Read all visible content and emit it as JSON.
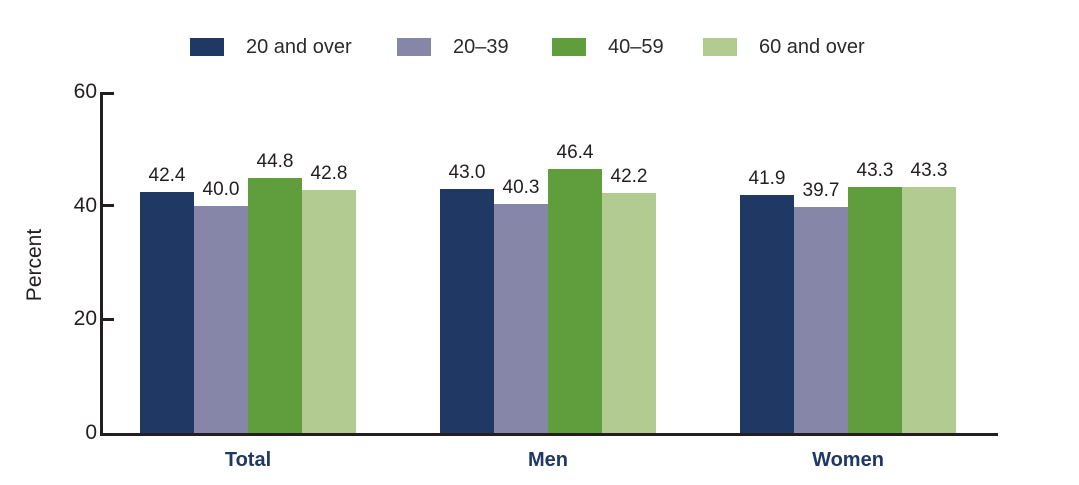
{
  "axis_color": "#231f20",
  "category_label_color": "#1f3864",
  "chart_data": {
    "type": "bar",
    "title": "",
    "xlabel": "",
    "ylabel": "Percent",
    "ylim": [
      0,
      60
    ],
    "yticks": [
      0,
      20,
      40,
      60
    ],
    "ytick_labels": [
      "0",
      "20",
      "40",
      "60"
    ],
    "grid": false,
    "legend_position": "top",
    "value_labels": true,
    "categories": [
      "Total",
      "Men",
      "Women"
    ],
    "series": [
      {
        "name": "20 and over",
        "color": "#1f3864",
        "values": [
          42.4,
          43.0,
          41.9
        ],
        "labels": [
          "42.4",
          "43.0",
          "41.9"
        ]
      },
      {
        "name": "20–39",
        "color": "#8687a8",
        "values": [
          40.0,
          40.3,
          39.7
        ],
        "labels": [
          "40.0",
          "40.3",
          "39.7"
        ]
      },
      {
        "name": "40–59",
        "color": "#5f9d3d",
        "values": [
          44.8,
          46.4,
          43.3
        ],
        "labels": [
          "44.8",
          "46.4",
          "43.3"
        ]
      },
      {
        "name": "60 and over",
        "color": "#b2cb90",
        "values": [
          42.8,
          42.2,
          43.3
        ],
        "labels": [
          "42.8",
          "42.2",
          "43.3"
        ]
      }
    ]
  }
}
